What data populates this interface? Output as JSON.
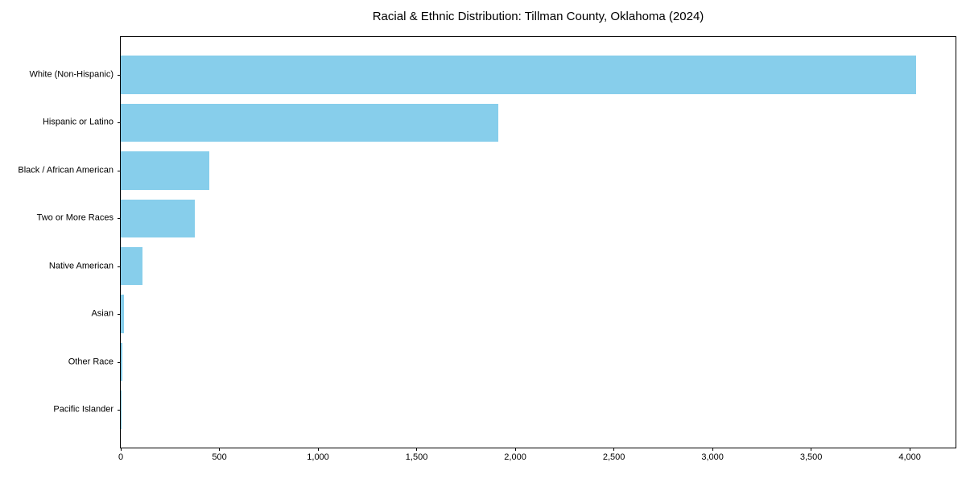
{
  "title": "Racial & Ethnic Distribution: Tillman County, Oklahoma (2024)",
  "chart_data": {
    "type": "bar",
    "orientation": "horizontal",
    "title": "Racial & Ethnic Distribution: Tillman County, Oklahoma (2024)",
    "xlabel": "",
    "ylabel": "",
    "categories": [
      "White (Non-Hispanic)",
      "Hispanic or Latino",
      "Black / African American",
      "Two or More Races",
      "Native American",
      "Asian",
      "Other Race",
      "Pacific Islander"
    ],
    "values": [
      4030,
      1915,
      450,
      375,
      110,
      15,
      8,
      2
    ],
    "x_ticks": [
      0,
      500,
      1000,
      1500,
      2000,
      2500,
      3000,
      3500,
      4000
    ],
    "x_tick_labels": [
      "0",
      "500",
      "1,000",
      "1,500",
      "2,000",
      "2,500",
      "3,000",
      "3,500",
      "4,000"
    ],
    "xlim": [
      0,
      4232
    ],
    "grid": false,
    "legend": "none",
    "bar_color": "#87CEEB",
    "axis_color": "#000000",
    "text_color": "#000000",
    "background_color": "#ffffff"
  }
}
